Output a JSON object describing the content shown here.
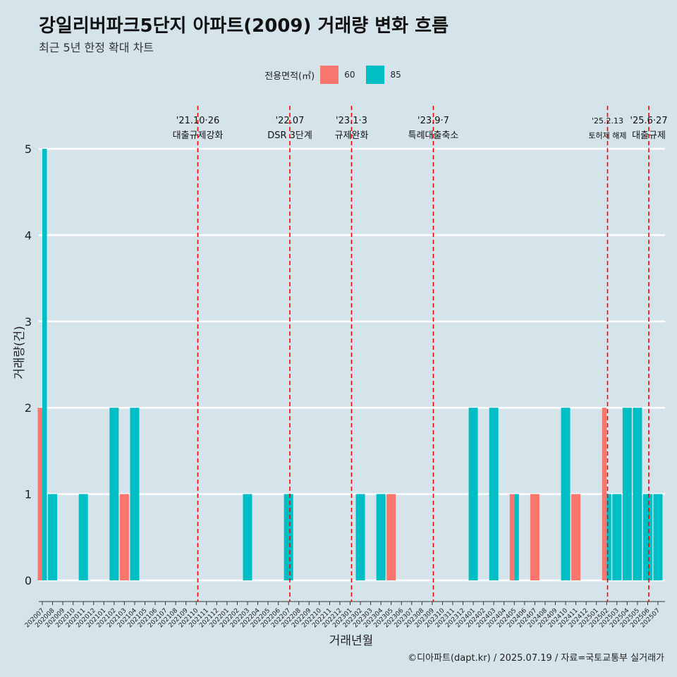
{
  "title": "강일리버파크5단지 아파트(2009) 거래량 변화 흐름",
  "subtitle": "최근 5년 한정 확대 차트",
  "caption": "©디아파트(dapt.kr) / 2025.07.19 / 자료=국토교통부 실거래가",
  "colors": {
    "background": "#d5e4eb",
    "series_60": "#f8766d",
    "series_85": "#00bfc4",
    "event_line": "#ff0000",
    "grid": "#ffffff"
  },
  "chart_data": {
    "type": "bar",
    "title": "강일리버파크5단지 아파트(2009) 거래량 변화 흐름",
    "xlabel": "거래년월",
    "ylabel": "거래량(건)",
    "ylim": [
      0,
      5
    ],
    "yticks": [
      0,
      1,
      2,
      3,
      4,
      5
    ],
    "grid": "horizontal",
    "legend": {
      "title": "전용면적(㎡)",
      "position": "top",
      "entries": [
        "60",
        "85"
      ]
    },
    "categories": [
      "202007",
      "202008",
      "202009",
      "202010",
      "202011",
      "202012",
      "202101",
      "202102",
      "202103",
      "202104",
      "202105",
      "202106",
      "202107",
      "202108",
      "202109",
      "202110",
      "202111",
      "202112",
      "202201",
      "202202",
      "202203",
      "202204",
      "202205",
      "202206",
      "202207",
      "202208",
      "202209",
      "202210",
      "202211",
      "202212",
      "202301",
      "202302",
      "202303",
      "202304",
      "202305",
      "202306",
      "202307",
      "202308",
      "202309",
      "202310",
      "202311",
      "202312",
      "202401",
      "202402",
      "202403",
      "202404",
      "202405",
      "202406",
      "202407",
      "202408",
      "202409",
      "202410",
      "202411",
      "202412",
      "202501",
      "202502",
      "202503",
      "202504",
      "202505",
      "202506",
      "202507"
    ],
    "series": [
      {
        "name": "60",
        "points": [
          {
            "x": "202007",
            "y": 2
          },
          {
            "x": "202103",
            "y": 1
          },
          {
            "x": "202305",
            "y": 1
          },
          {
            "x": "202405",
            "y": 1
          },
          {
            "x": "202407",
            "y": 1
          },
          {
            "x": "202411",
            "y": 1
          },
          {
            "x": "202502",
            "y": 2
          }
        ]
      },
      {
        "name": "85",
        "points": [
          {
            "x": "202007",
            "y": 5
          },
          {
            "x": "202008",
            "y": 1
          },
          {
            "x": "202011",
            "y": 1
          },
          {
            "x": "202102",
            "y": 2
          },
          {
            "x": "202104",
            "y": 2
          },
          {
            "x": "202203",
            "y": 1
          },
          {
            "x": "202207",
            "y": 1
          },
          {
            "x": "202302",
            "y": 1
          },
          {
            "x": "202304",
            "y": 1
          },
          {
            "x": "202401",
            "y": 2
          },
          {
            "x": "202403",
            "y": 2
          },
          {
            "x": "202405",
            "y": 1
          },
          {
            "x": "202410",
            "y": 2
          },
          {
            "x": "202502",
            "y": 1
          },
          {
            "x": "202503",
            "y": 1
          },
          {
            "x": "202504",
            "y": 2
          },
          {
            "x": "202505",
            "y": 2
          },
          {
            "x": "202506",
            "y": 1
          },
          {
            "x": "202507",
            "y": 1
          }
        ]
      }
    ],
    "annotations": [
      {
        "x": "202110",
        "date": "'21.10·26",
        "label": "대출규제강화"
      },
      {
        "x": "202207",
        "date": "'22.07",
        "label": "DSR 3단계"
      },
      {
        "x": "202301",
        "date": "'23.1·3",
        "label": "규제완화"
      },
      {
        "x": "202309",
        "date": "'23.9·7",
        "label": "특례대출축소"
      },
      {
        "x": "202502",
        "date": "'25.2.13",
        "label": "토허제 해제"
      },
      {
        "x": "202506",
        "date": "'25.6·27",
        "label": "대출규제"
      }
    ]
  }
}
